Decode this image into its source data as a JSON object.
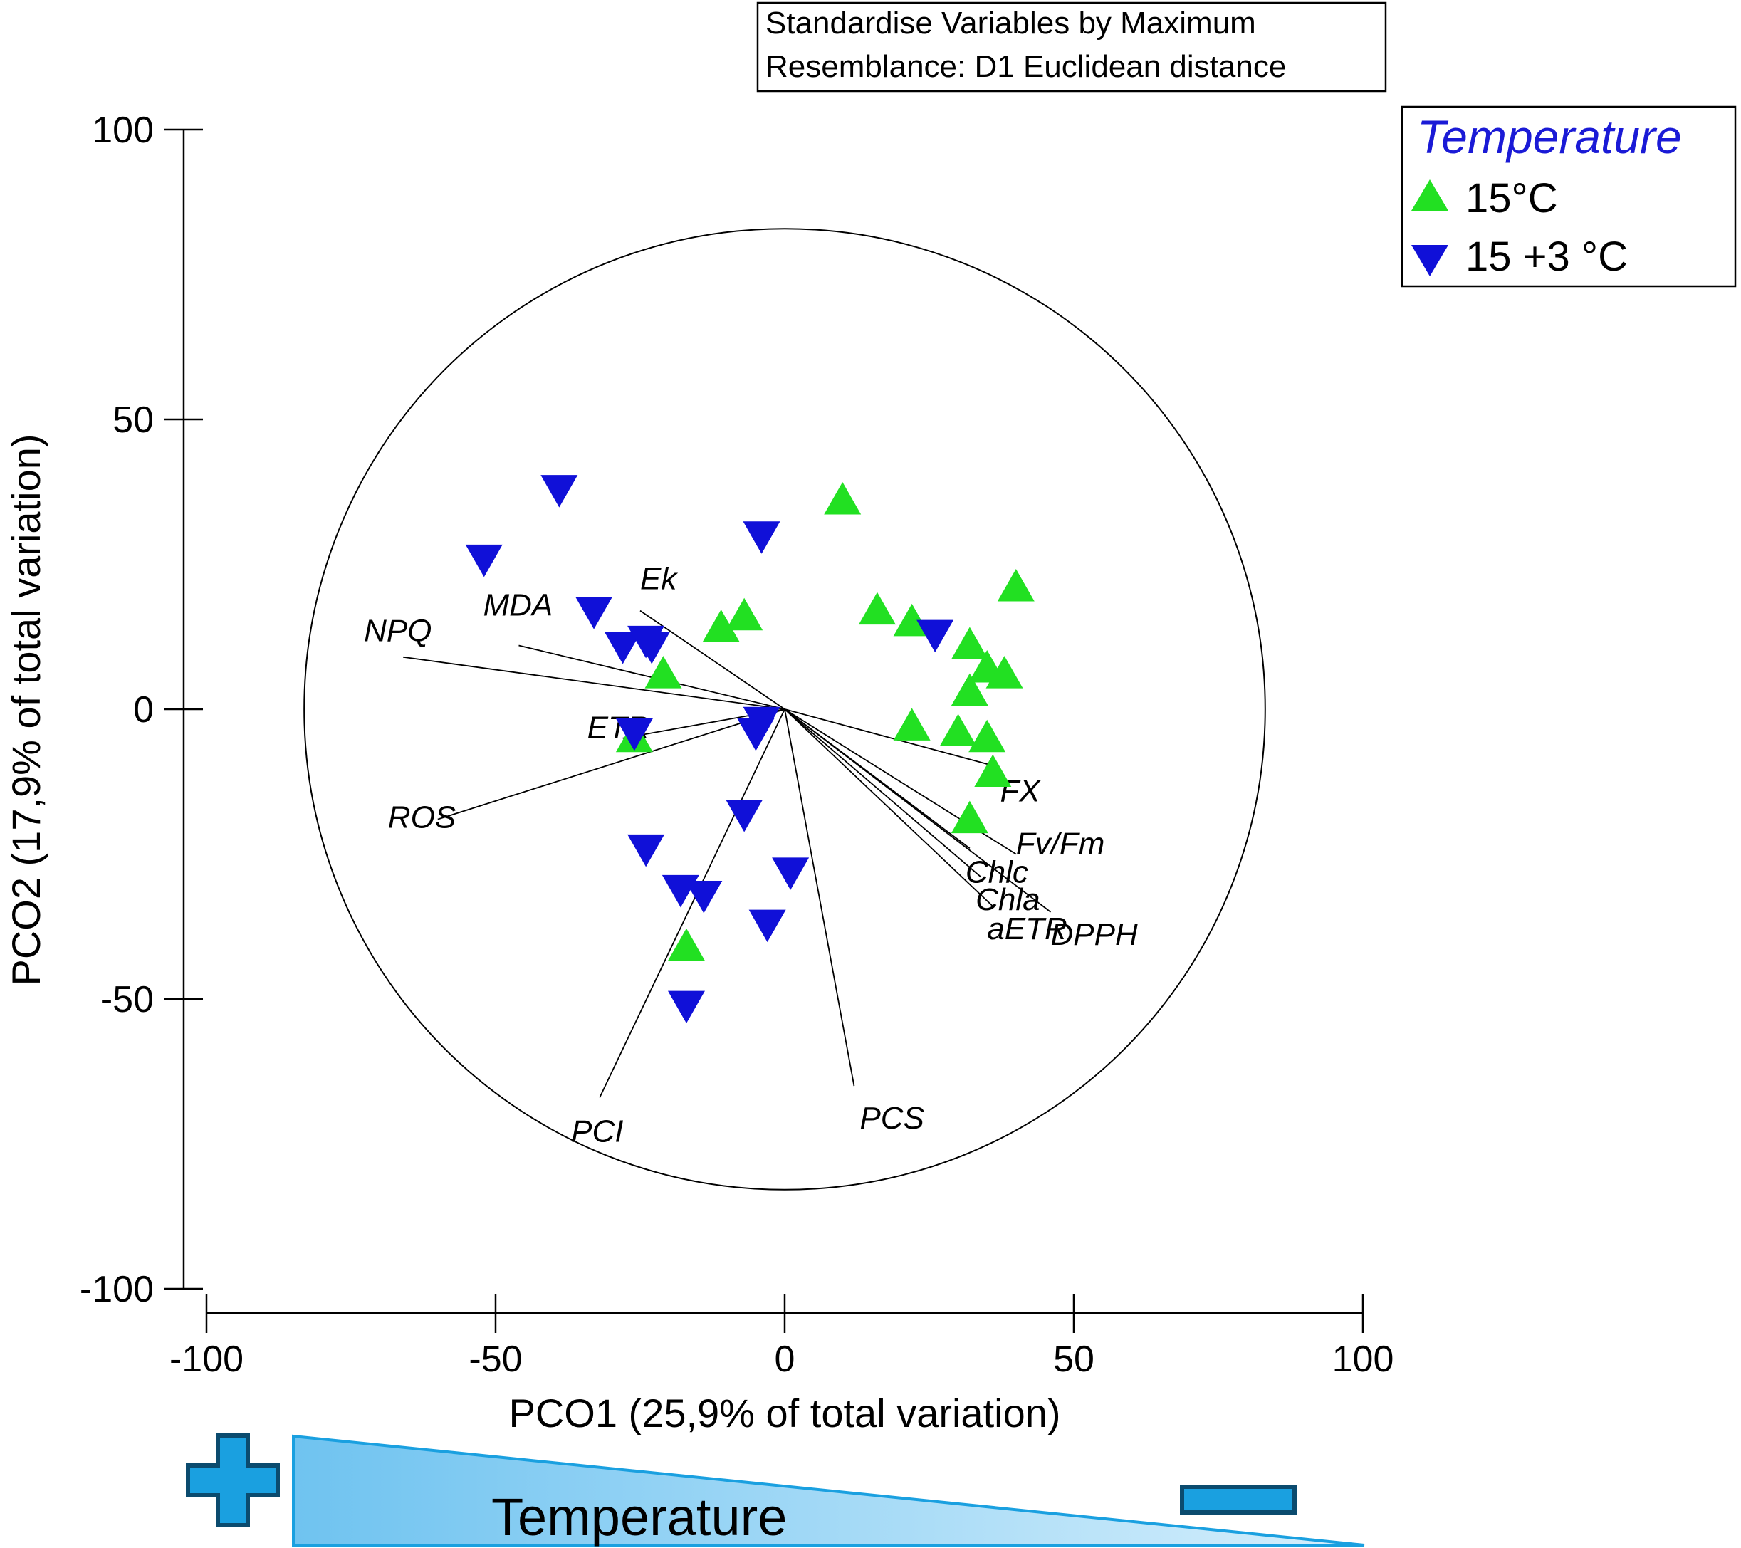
{
  "chart_data": {
    "type": "scatter",
    "subtype": "PCO ordination biplot",
    "xlabel": "PCO1 (25,9% of total variation)",
    "ylabel": "PCO2 (17,9% of total variation)",
    "xlim": [
      -100,
      100
    ],
    "ylim": [
      -100,
      100
    ],
    "xticks": [
      "-100",
      "-50",
      "0",
      "50",
      "100"
    ],
    "yticks": [
      "-100",
      "-50",
      "0",
      "50",
      "100"
    ],
    "grid": false,
    "note_lines": [
      "Standardise Variables by Maximum",
      "Resemblance: D1 Euclidean distance"
    ],
    "correlation_circle_radius": 83,
    "legend": {
      "title": "Temperature",
      "title_color": "#1a1ad6",
      "placement": "top-right",
      "entries": [
        {
          "label": "15°C",
          "marker": "triangle-up",
          "color": "#22e022"
        },
        {
          "label": "15 +3 °C",
          "marker": "triangle-down",
          "color": "#1010d8"
        }
      ]
    },
    "series": [
      {
        "name": "15°C",
        "marker": "triangle-up",
        "color": "#22e022",
        "points": [
          [
            10,
            36
          ],
          [
            40,
            21
          ],
          [
            16,
            17
          ],
          [
            -7,
            16
          ],
          [
            -11,
            14
          ],
          [
            22,
            15
          ],
          [
            32,
            11
          ],
          [
            35,
            7
          ],
          [
            38,
            6
          ],
          [
            -21,
            6
          ],
          [
            32,
            3
          ],
          [
            22,
            -3
          ],
          [
            30,
            -4
          ],
          [
            35,
            -5
          ],
          [
            -26,
            -5
          ],
          [
            36,
            -11
          ],
          [
            32,
            -19
          ],
          [
            -17,
            -41
          ]
        ]
      },
      {
        "name": "15 +3 °C",
        "marker": "triangle-down",
        "color": "#1010d8",
        "points": [
          [
            -39,
            38
          ],
          [
            -52,
            26
          ],
          [
            -4,
            30
          ],
          [
            -33,
            17
          ],
          [
            -28,
            11
          ],
          [
            -24,
            12
          ],
          [
            -23,
            11
          ],
          [
            26,
            13
          ],
          [
            -4,
            -2
          ],
          [
            -5,
            -4
          ],
          [
            -26,
            -4
          ],
          [
            -7,
            -18
          ],
          [
            -24,
            -24
          ],
          [
            -18,
            -31
          ],
          [
            -14,
            -32
          ],
          [
            1,
            -28
          ],
          [
            -3,
            -37
          ],
          [
            -17,
            -51
          ]
        ]
      }
    ],
    "vectors": [
      {
        "label": "NPQ",
        "x": -66,
        "y": 9
      },
      {
        "label": "MDA",
        "x": -46,
        "y": 11
      },
      {
        "label": "Ek",
        "x": -25,
        "y": 17
      },
      {
        "label": "ETR",
        "x": -28,
        "y": -5
      },
      {
        "label": "ROS",
        "x": -60,
        "y": -19
      },
      {
        "label": "PCI",
        "x": -32,
        "y": -67
      },
      {
        "label": "PCS",
        "x": 12,
        "y": -65
      },
      {
        "label": "FX",
        "x": 37,
        "y": -10
      },
      {
        "label": "Chlc",
        "x": 32,
        "y": -24
      },
      {
        "label": "Fv/Fm",
        "x": 40,
        "y": -25
      },
      {
        "label": "Chla",
        "x": 34,
        "y": -29
      },
      {
        "label": "aETR",
        "x": 36,
        "y": -34
      },
      {
        "label": "DPPH",
        "x": 46,
        "y": -35
      }
    ]
  },
  "gradient_bar": {
    "label": "Temperature",
    "plus_symbol": "plus",
    "minus_symbol": "minus",
    "fill_color": "#6fc3f0",
    "symbol_color": "#1aa0e0"
  }
}
